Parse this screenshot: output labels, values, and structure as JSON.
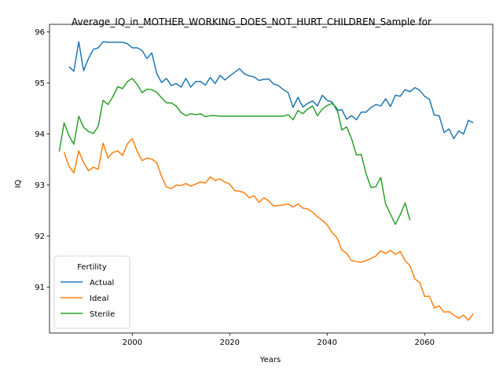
{
  "chart_data": {
    "type": "line",
    "title": "Average_IQ_in_MOTHER_WORKING_DOES_NOT_HURT_CHILDREN_Sample for",
    "xlabel": "Years",
    "ylabel": "IQ",
    "xlim": [
      1983,
      2074
    ],
    "ylim": [
      90.1,
      96.15
    ],
    "xticks": [
      2000,
      2020,
      2040,
      2060
    ],
    "yticks": [
      91,
      92,
      93,
      94,
      95,
      96
    ],
    "grid": false,
    "legend": {
      "title": "Fertility",
      "placement": "lower-left"
    },
    "series": [
      {
        "name": "Actual",
        "color": "#1f77b4",
        "x": [
          1987,
          1988,
          1989,
          1990,
          1991,
          1992,
          1993,
          1994,
          1995,
          1996,
          1997,
          1998,
          1999,
          2000,
          2001,
          2002,
          2003,
          2004,
          2005,
          2006,
          2007,
          2008,
          2009,
          2010,
          2011,
          2012,
          2013,
          2014,
          2015,
          2016,
          2017,
          2018,
          2019,
          2020,
          2021,
          2022,
          2023,
          2024,
          2025,
          2026,
          2027,
          2028,
          2029,
          2030,
          2031,
          2032,
          2033,
          2034,
          2035,
          2036,
          2037,
          2038,
          2039,
          2040,
          2041,
          2042,
          2043,
          2044,
          2045,
          2046,
          2047,
          2048,
          2049,
          2050,
          2051,
          2052,
          2053,
          2054,
          2055,
          2056,
          2057,
          2058,
          2059,
          2060,
          2061,
          2062,
          2063,
          2064,
          2065,
          2066,
          2067,
          2068,
          2069,
          2070
        ],
        "y": [
          95.32,
          95.23,
          95.81,
          95.24,
          95.48,
          95.66,
          95.69,
          95.81,
          95.8,
          95.8,
          95.8,
          95.8,
          95.77,
          95.69,
          95.69,
          95.64,
          95.48,
          95.59,
          95.19,
          95.01,
          95.09,
          94.95,
          94.99,
          94.92,
          95.09,
          94.92,
          95.03,
          95.03,
          94.96,
          95.11,
          94.99,
          95.15,
          95.06,
          95.14,
          95.21,
          95.28,
          95.18,
          95.14,
          95.12,
          95.05,
          95.07,
          95.08,
          94.98,
          94.95,
          94.87,
          94.81,
          94.52,
          94.72,
          94.53,
          94.6,
          94.65,
          94.55,
          94.76,
          94.66,
          94.63,
          94.46,
          94.48,
          94.29,
          94.36,
          94.28,
          94.43,
          94.43,
          94.52,
          94.58,
          94.55,
          94.69,
          94.54,
          94.76,
          94.74,
          94.87,
          94.83,
          94.91,
          94.86,
          94.74,
          94.68,
          94.37,
          94.36,
          94.03,
          94.1,
          93.91,
          94.06,
          94.0,
          94.27,
          94.22
        ]
      },
      {
        "name": "Ideal",
        "color": "#ff7f0e",
        "x": [
          1986,
          1987,
          1988,
          1989,
          1990,
          1991,
          1992,
          1993,
          1994,
          1995,
          1996,
          1997,
          1998,
          1999,
          2000,
          2001,
          2002,
          2003,
          2004,
          2005,
          2006,
          2007,
          2008,
          2009,
          2010,
          2011,
          2012,
          2013,
          2014,
          2015,
          2016,
          2017,
          2018,
          2019,
          2020,
          2021,
          2022,
          2023,
          2024,
          2025,
          2026,
          2027,
          2028,
          2029,
          2030,
          2031,
          2032,
          2033,
          2034,
          2035,
          2036,
          2037,
          2038,
          2039,
          2040,
          2041,
          2042,
          2043,
          2044,
          2045,
          2046,
          2047,
          2048,
          2049,
          2050,
          2051,
          2052,
          2053,
          2054,
          2055,
          2056,
          2057,
          2058,
          2059,
          2060,
          2061,
          2062,
          2063,
          2064,
          2065,
          2066,
          2067,
          2068,
          2069,
          2070
        ],
        "y": [
          93.64,
          93.37,
          93.24,
          93.67,
          93.44,
          93.28,
          93.35,
          93.31,
          93.82,
          93.53,
          93.64,
          93.67,
          93.58,
          93.81,
          93.91,
          93.66,
          93.48,
          93.53,
          93.51,
          93.44,
          93.17,
          92.96,
          92.93,
          93.0,
          92.99,
          93.03,
          92.98,
          93.02,
          93.06,
          93.04,
          93.16,
          93.09,
          93.12,
          93.06,
          93.02,
          92.89,
          92.88,
          92.85,
          92.75,
          92.79,
          92.66,
          92.75,
          92.69,
          92.59,
          92.6,
          92.61,
          92.63,
          92.57,
          92.63,
          92.55,
          92.53,
          92.47,
          92.38,
          92.31,
          92.22,
          92.07,
          91.97,
          91.73,
          91.66,
          91.52,
          91.5,
          91.49,
          91.52,
          91.56,
          91.61,
          91.71,
          91.66,
          91.72,
          91.64,
          91.7,
          91.52,
          91.42,
          91.16,
          91.09,
          90.82,
          90.82,
          90.59,
          90.63,
          90.51,
          90.52,
          90.45,
          90.39,
          90.45,
          90.35,
          90.48
        ]
      },
      {
        "name": "Sterile",
        "color": "#2ca02c",
        "x": [
          1985,
          1986,
          1987,
          1988,
          1989,
          1990,
          1991,
          1992,
          1993,
          1994,
          1995,
          1996,
          1997,
          1998,
          1999,
          2000,
          2001,
          2002,
          2003,
          2004,
          2005,
          2006,
          2007,
          2008,
          2009,
          2010,
          2011,
          2012,
          2013,
          2014,
          2015,
          2016,
          2017,
          2018,
          2019,
          2020,
          2021,
          2022,
          2023,
          2024,
          2025,
          2026,
          2027,
          2028,
          2029,
          2030,
          2031,
          2032,
          2033,
          2034,
          2035,
          2036,
          2037,
          2038,
          2039,
          2040,
          2041,
          2042,
          2043,
          2044,
          2045,
          2046,
          2047,
          2048,
          2049,
          2050,
          2051,
          2052,
          2053,
          2054,
          2055,
          2056,
          2057
        ],
        "y": [
          93.66,
          94.22,
          93.97,
          93.8,
          94.35,
          94.13,
          94.05,
          94.01,
          94.15,
          94.66,
          94.58,
          94.73,
          94.93,
          94.89,
          95.03,
          95.09,
          94.97,
          94.81,
          94.88,
          94.87,
          94.82,
          94.71,
          94.61,
          94.61,
          94.55,
          94.42,
          94.36,
          94.4,
          94.38,
          94.4,
          94.34,
          94.36,
          94.36,
          94.35,
          94.35,
          94.35,
          94.35,
          94.35,
          94.35,
          94.35,
          94.35,
          94.35,
          94.35,
          94.35,
          94.35,
          94.35,
          94.35,
          94.38,
          94.28,
          94.46,
          94.4,
          94.49,
          94.55,
          94.36,
          94.49,
          94.56,
          94.6,
          94.51,
          94.08,
          94.14,
          93.91,
          93.59,
          93.6,
          93.22,
          92.95,
          92.97,
          93.15,
          92.63,
          92.43,
          92.23,
          92.42,
          92.65,
          92.31
        ]
      }
    ]
  }
}
